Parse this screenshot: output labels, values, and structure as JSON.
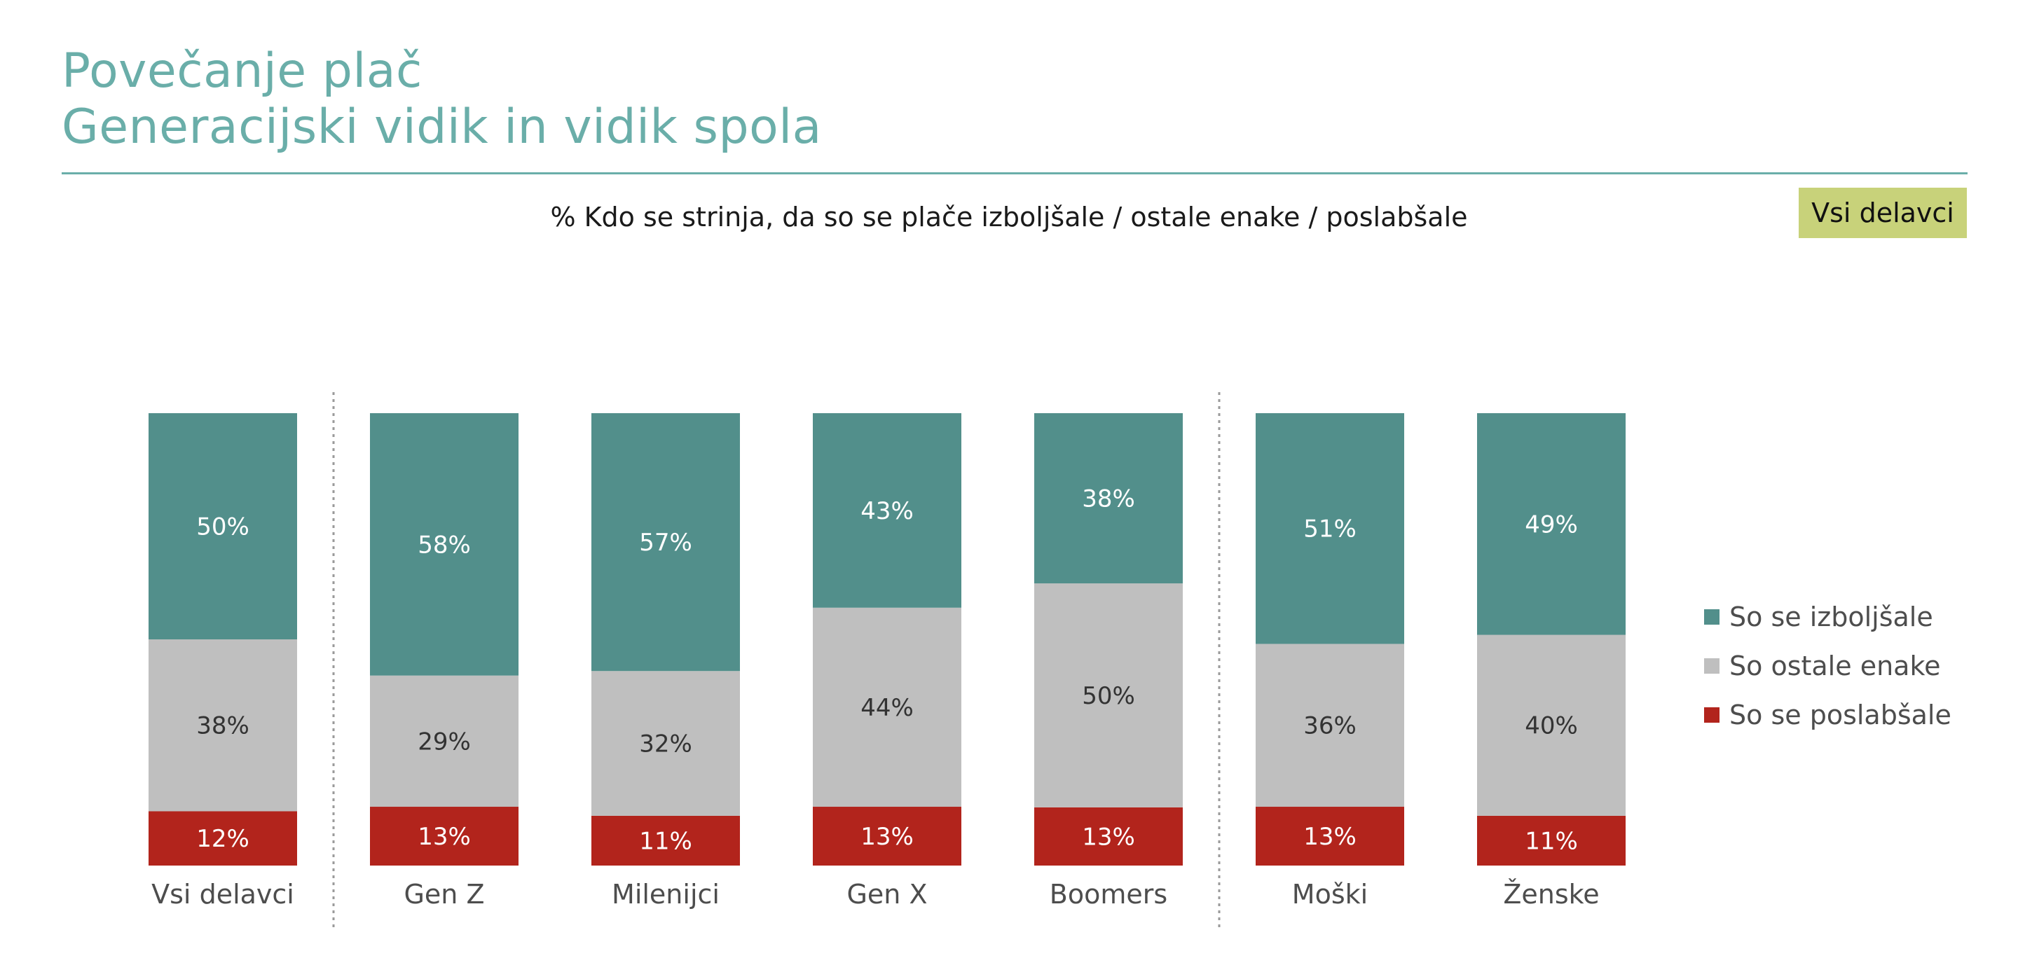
{
  "header": {
    "title_line1": "Povečanje plač",
    "title_line2": "Generacijski vidik in vidik spola",
    "subtitle": "% Kdo se strinja, da so se plače izboljšale / ostale enake / poslabšale",
    "badge": "Vsi delavci"
  },
  "colors": {
    "improved": "#528f8b",
    "same": "#bfbfbf",
    "worse": "#b2241c",
    "accent": "#6aaea9",
    "badge": "#c8d27a"
  },
  "legend": [
    {
      "label": "So se izboljšale",
      "color": "#528f8b"
    },
    {
      "label": "So ostale enake",
      "color": "#bfbfbf"
    },
    {
      "label": "So se poslabšale",
      "color": "#b2241c"
    }
  ],
  "chart_data": {
    "type": "bar",
    "stacked": true,
    "normalized": true,
    "categories": [
      "Vsi delavci",
      "Gen Z",
      "Milenijci",
      "Gen X",
      "Boomers",
      "Moški",
      "Ženske"
    ],
    "series": [
      {
        "name": "So se poslabšale",
        "values": [
          12,
          13,
          11,
          13,
          13,
          13,
          11
        ],
        "labels": [
          "12%",
          "13%",
          "11%",
          "13%",
          "13%",
          "13%",
          "11%"
        ]
      },
      {
        "name": "So ostale enake",
        "values": [
          38,
          29,
          32,
          44,
          50,
          36,
          40
        ],
        "labels": [
          "38%",
          "29%",
          "32%",
          "44%",
          "50%",
          "36%",
          "40%"
        ]
      },
      {
        "name": "So se izboljšale",
        "values": [
          50,
          58,
          57,
          43,
          38,
          51,
          49
        ],
        "labels": [
          "50%",
          "58%",
          "57%",
          "43%",
          "38%",
          "51%",
          "49%"
        ]
      }
    ],
    "group_separators_after": [
      "Vsi delavci",
      "Boomers"
    ],
    "legend_position": "right"
  }
}
